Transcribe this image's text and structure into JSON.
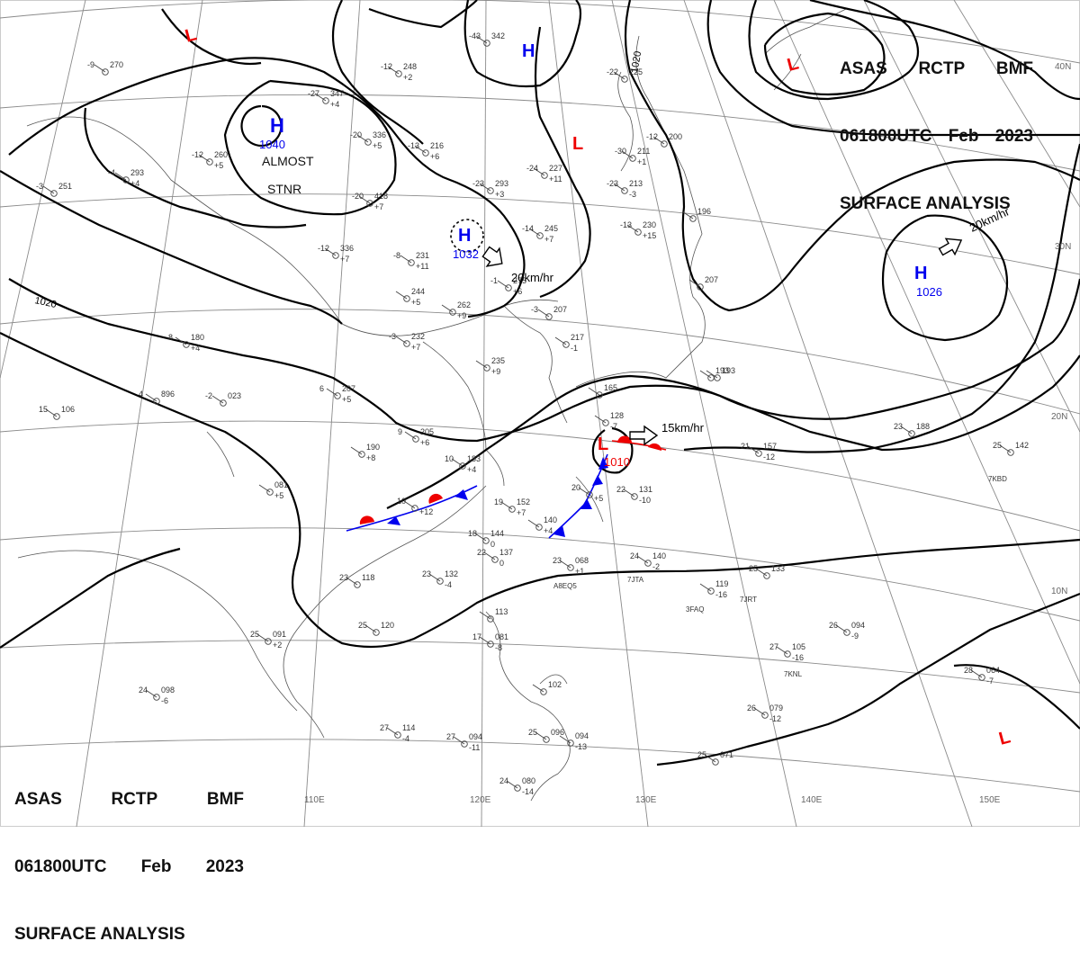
{
  "header_top_right": {
    "line1": [
      "ASAS",
      "RCTP",
      "BMF"
    ],
    "line2": [
      "061800UTC",
      "Feb",
      "2023"
    ],
    "line3": "SURFACE ANALYSIS"
  },
  "header_bottom_left": {
    "line1": [
      "ASAS",
      "RCTP",
      "BMF"
    ],
    "line2": [
      "061800UTC",
      "Feb",
      "2023"
    ],
    "line3": "SURFACE ANALYSIS"
  },
  "longitude_labels": [
    "110E",
    "120E",
    "130E",
    "140E",
    "150E"
  ],
  "latitude_labels": [
    "40N",
    "30N",
    "20N",
    "10N"
  ],
  "isobar_labels": [
    "1020",
    "1020"
  ],
  "pressure_centers": {
    "highs": [
      {
        "letter": "H",
        "value": "1040",
        "note_line1": "ALMOST",
        "note_line2": "STNR"
      },
      {
        "letter": "H",
        "value": "1032",
        "motion": "20km/hr"
      },
      {
        "letter": "H",
        "value": "1026",
        "motion": "20km/hr"
      },
      {
        "letter": "H",
        "value": ""
      }
    ],
    "lows": [
      {
        "letter": "L",
        "value": ""
      },
      {
        "letter": "L",
        "value": ""
      },
      {
        "letter": "L",
        "value": ""
      },
      {
        "letter": "L",
        "value": "1010",
        "motion": "15km/hr"
      },
      {
        "letter": "L",
        "value": ""
      }
    ]
  },
  "station_plots": [
    {
      "temp": "-9",
      "pres": "270",
      "tend": ""
    },
    {
      "temp": "-12",
      "pres": "248",
      "tend": "+2"
    },
    {
      "temp": "-27",
      "pres": "347",
      "tend": "+4"
    },
    {
      "temp": "-43",
      "pres": "342",
      "tend": ""
    },
    {
      "temp": "-20",
      "pres": "336",
      "tend": "+5"
    },
    {
      "temp": "-12",
      "pres": "260",
      "tend": "+5"
    },
    {
      "temp": "-13",
      "pres": "216",
      "tend": "+6"
    },
    {
      "temp": "-24",
      "pres": "227",
      "tend": "+11"
    },
    {
      "temp": "-22",
      "pres": "225",
      "tend": ""
    },
    {
      "temp": "-30",
      "pres": "211",
      "tend": "+1"
    },
    {
      "temp": "-12",
      "pres": "200",
      "tend": ""
    },
    {
      "temp": "-4",
      "pres": "293",
      "tend": "+4"
    },
    {
      "temp": "-3",
      "pres": "251",
      "tend": ""
    },
    {
      "temp": "-20",
      "pres": "418",
      "tend": "+7"
    },
    {
      "temp": "-23",
      "pres": "293",
      "tend": "+3"
    },
    {
      "temp": "-23",
      "pres": "213",
      "tend": "-3"
    },
    {
      "temp": "-14",
      "pres": "245",
      "tend": "+7"
    },
    {
      "temp": "-13",
      "pres": "230",
      "tend": "+15"
    },
    {
      "temp": "-12",
      "pres": "336",
      "tend": "+7"
    },
    {
      "temp": "-8",
      "pres": "231",
      "tend": "+11"
    },
    {
      "temp": "-1",
      "pres": "275",
      "tend": "+6"
    },
    {
      "temp": "",
      "pres": "244",
      "tend": "+5"
    },
    {
      "temp": "",
      "pres": "262",
      "tend": "+9"
    },
    {
      "temp": "-3",
      "pres": "232",
      "tend": "+7"
    },
    {
      "temp": "-3",
      "pres": "207",
      "tend": ""
    },
    {
      "temp": "",
      "pres": "217",
      "tend": "-1"
    },
    {
      "temp": "",
      "pres": "235",
      "tend": "+9"
    },
    {
      "temp": "8",
      "pres": "180",
      "tend": "+4"
    },
    {
      "temp": "6",
      "pres": "207",
      "tend": "+5"
    },
    {
      "temp": "4",
      "pres": "896",
      "tend": ""
    },
    {
      "temp": "-2",
      "pres": "023",
      "tend": ""
    },
    {
      "temp": "15",
      "pres": "106",
      "tend": ""
    },
    {
      "temp": "9",
      "pres": "205",
      "tend": "+6"
    },
    {
      "temp": "",
      "pres": "193",
      "tend": ""
    },
    {
      "temp": "10",
      "pres": "183",
      "tend": "+4"
    },
    {
      "temp": "",
      "pres": "190",
      "tend": "+8"
    },
    {
      "temp": "",
      "pres": "081",
      "tend": "+5"
    },
    {
      "temp": "10",
      "pres": "",
      "tend": "+12"
    },
    {
      "temp": "19",
      "pres": "152",
      "tend": "+7"
    },
    {
      "temp": "",
      "pres": "140",
      "tend": "+4"
    },
    {
      "temp": "18",
      "pres": "144",
      "tend": "0"
    },
    {
      "temp": "22",
      "pres": "137",
      "tend": "0"
    },
    {
      "temp": "20",
      "pres": "",
      "tend": "+5"
    },
    {
      "temp": "22",
      "pres": "131",
      "tend": "-10"
    },
    {
      "temp": "23",
      "pres": "068",
      "tend": "+1"
    },
    {
      "temp": "24",
      "pres": "140",
      "tend": "-2"
    },
    {
      "temp": "23",
      "pres": "132",
      "tend": "-4"
    },
    {
      "temp": "23",
      "pres": "118",
      "tend": ""
    },
    {
      "temp": "",
      "pres": "119",
      "tend": "-16"
    },
    {
      "temp": "25",
      "pres": "133",
      "tend": ""
    },
    {
      "temp": "25",
      "pres": "120",
      "tend": ""
    },
    {
      "temp": "25",
      "pres": "091",
      "tend": "+2"
    },
    {
      "temp": "",
      "pres": "113",
      "tend": ""
    },
    {
      "temp": "17",
      "pres": "081",
      "tend": "-8"
    },
    {
      "temp": "26",
      "pres": "094",
      "tend": "-9"
    },
    {
      "temp": "27",
      "pres": "105",
      "tend": "-16"
    },
    {
      "temp": "28",
      "pres": "064",
      "tend": "-7"
    },
    {
      "temp": "24",
      "pres": "098",
      "tend": "-6"
    },
    {
      "temp": "",
      "pres": "102",
      "tend": ""
    },
    {
      "temp": "27",
      "pres": "114",
      "tend": "-4"
    },
    {
      "temp": "27",
      "pres": "094",
      "tend": "-11"
    },
    {
      "temp": "25",
      "pres": "096",
      "tend": ""
    },
    {
      "temp": "",
      "pres": "094",
      "tend": "-13"
    },
    {
      "temp": "26",
      "pres": "079",
      "tend": "-12"
    },
    {
      "temp": "25",
      "pres": "071",
      "tend": ""
    },
    {
      "temp": "24",
      "pres": "080",
      "tend": "-14"
    },
    {
      "temp": "21",
      "pres": "157",
      "tend": "-12"
    },
    {
      "temp": "23",
      "pres": "188",
      "tend": ""
    },
    {
      "temp": "25",
      "pres": "142",
      "tend": ""
    },
    {
      "temp": "",
      "pres": "193",
      "tend": ""
    },
    {
      "temp": "",
      "pres": "196",
      "tend": ""
    },
    {
      "temp": "",
      "pres": "207",
      "tend": ""
    },
    {
      "temp": "",
      "pres": "165",
      "tend": ""
    },
    {
      "temp": "",
      "pres": "128",
      "tend": "-7"
    }
  ],
  "ship_callsigns": [
    "7KBD",
    "7JTA",
    "A8EQ5",
    "3FAQ",
    "7JRT",
    "7KNL"
  ],
  "colors": {
    "isobar": "#000000",
    "grid": "#8a8a8a",
    "coast": "#555555",
    "high": "#0000ee",
    "low": "#ee0000",
    "cold_front": "#0000ee",
    "warm_front": "#ee0000"
  }
}
